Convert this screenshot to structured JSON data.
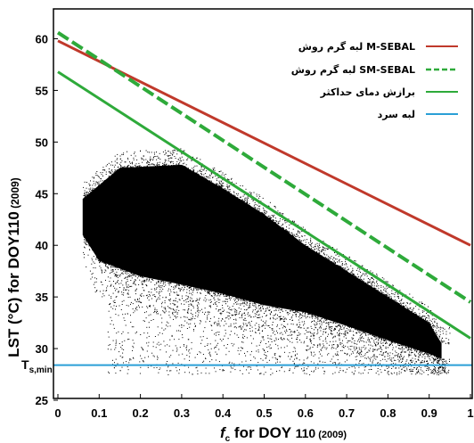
{
  "chart_data": {
    "type": "scatter",
    "title": "",
    "xlabel": {
      "prefix": "f",
      "subscript": "c",
      "main": " for DOY ",
      "number": "110",
      "suffix": " (2009)"
    },
    "ylabel": {
      "main": "LST (°C)  for DOY110",
      "suffix": " (2009)"
    },
    "xlim": [
      0,
      1
    ],
    "ylim": [
      25,
      61.5
    ],
    "x_ticks": [
      "0",
      "0.1",
      "0.2",
      "0.3",
      "0.4",
      "0.5",
      "0.6",
      "0.7",
      "0.8",
      "0.9",
      "1"
    ],
    "y_ticks": [
      "25",
      "30",
      "35",
      "40",
      "45",
      "50",
      "55",
      "60"
    ],
    "y_annotation": {
      "main": "T",
      "subscript": "s,min",
      "value": 28.4
    },
    "grid": false,
    "legend_position": "top-right",
    "series": [
      {
        "name": "لبه گرم روش  M-SEBAL",
        "style": "solid",
        "color": "#c0392b",
        "x": [
          0,
          1
        ],
        "y": [
          59.8,
          40.0
        ]
      },
      {
        "name": "لبه گرم روش SM-SEBAL",
        "style": "dashed",
        "color": "#2eaa3a",
        "x": [
          0,
          1
        ],
        "y": [
          60.6,
          34.5
        ]
      },
      {
        "name": "برازش دمای حداکثر",
        "style": "solid",
        "color": "#2eaa3a",
        "x": [
          0,
          1
        ],
        "y": [
          56.8,
          31.0
        ]
      },
      {
        "name": "لبه سرد",
        "style": "solid",
        "color": "#2a9fd6",
        "x": [
          0,
          1
        ],
        "y": [
          28.4,
          28.4
        ]
      }
    ],
    "scatter_cloud": {
      "color": "#000000",
      "dense_region": {
        "x_range": [
          0.06,
          0.93
        ],
        "top": [
          [
            0.06,
            44.5
          ],
          [
            0.15,
            47.5
          ],
          [
            0.3,
            47.8
          ],
          [
            0.4,
            45.5
          ],
          [
            0.5,
            43.0
          ],
          [
            0.6,
            40.0
          ],
          [
            0.7,
            37.5
          ],
          [
            0.8,
            35.0
          ],
          [
            0.9,
            32.5
          ],
          [
            0.93,
            30.5
          ]
        ],
        "bottom": [
          [
            0.06,
            41.0
          ],
          [
            0.1,
            38.5
          ],
          [
            0.2,
            37.0
          ],
          [
            0.3,
            36.2
          ],
          [
            0.4,
            35.3
          ],
          [
            0.5,
            34.2
          ],
          [
            0.6,
            33.5
          ],
          [
            0.7,
            32.2
          ],
          [
            0.8,
            30.8
          ],
          [
            0.9,
            29.5
          ],
          [
            0.93,
            29.0
          ]
        ]
      },
      "sparse_region": {
        "x_range": [
          0.06,
          0.96
        ],
        "top": 49.0,
        "bottom": 27.5
      }
    }
  }
}
